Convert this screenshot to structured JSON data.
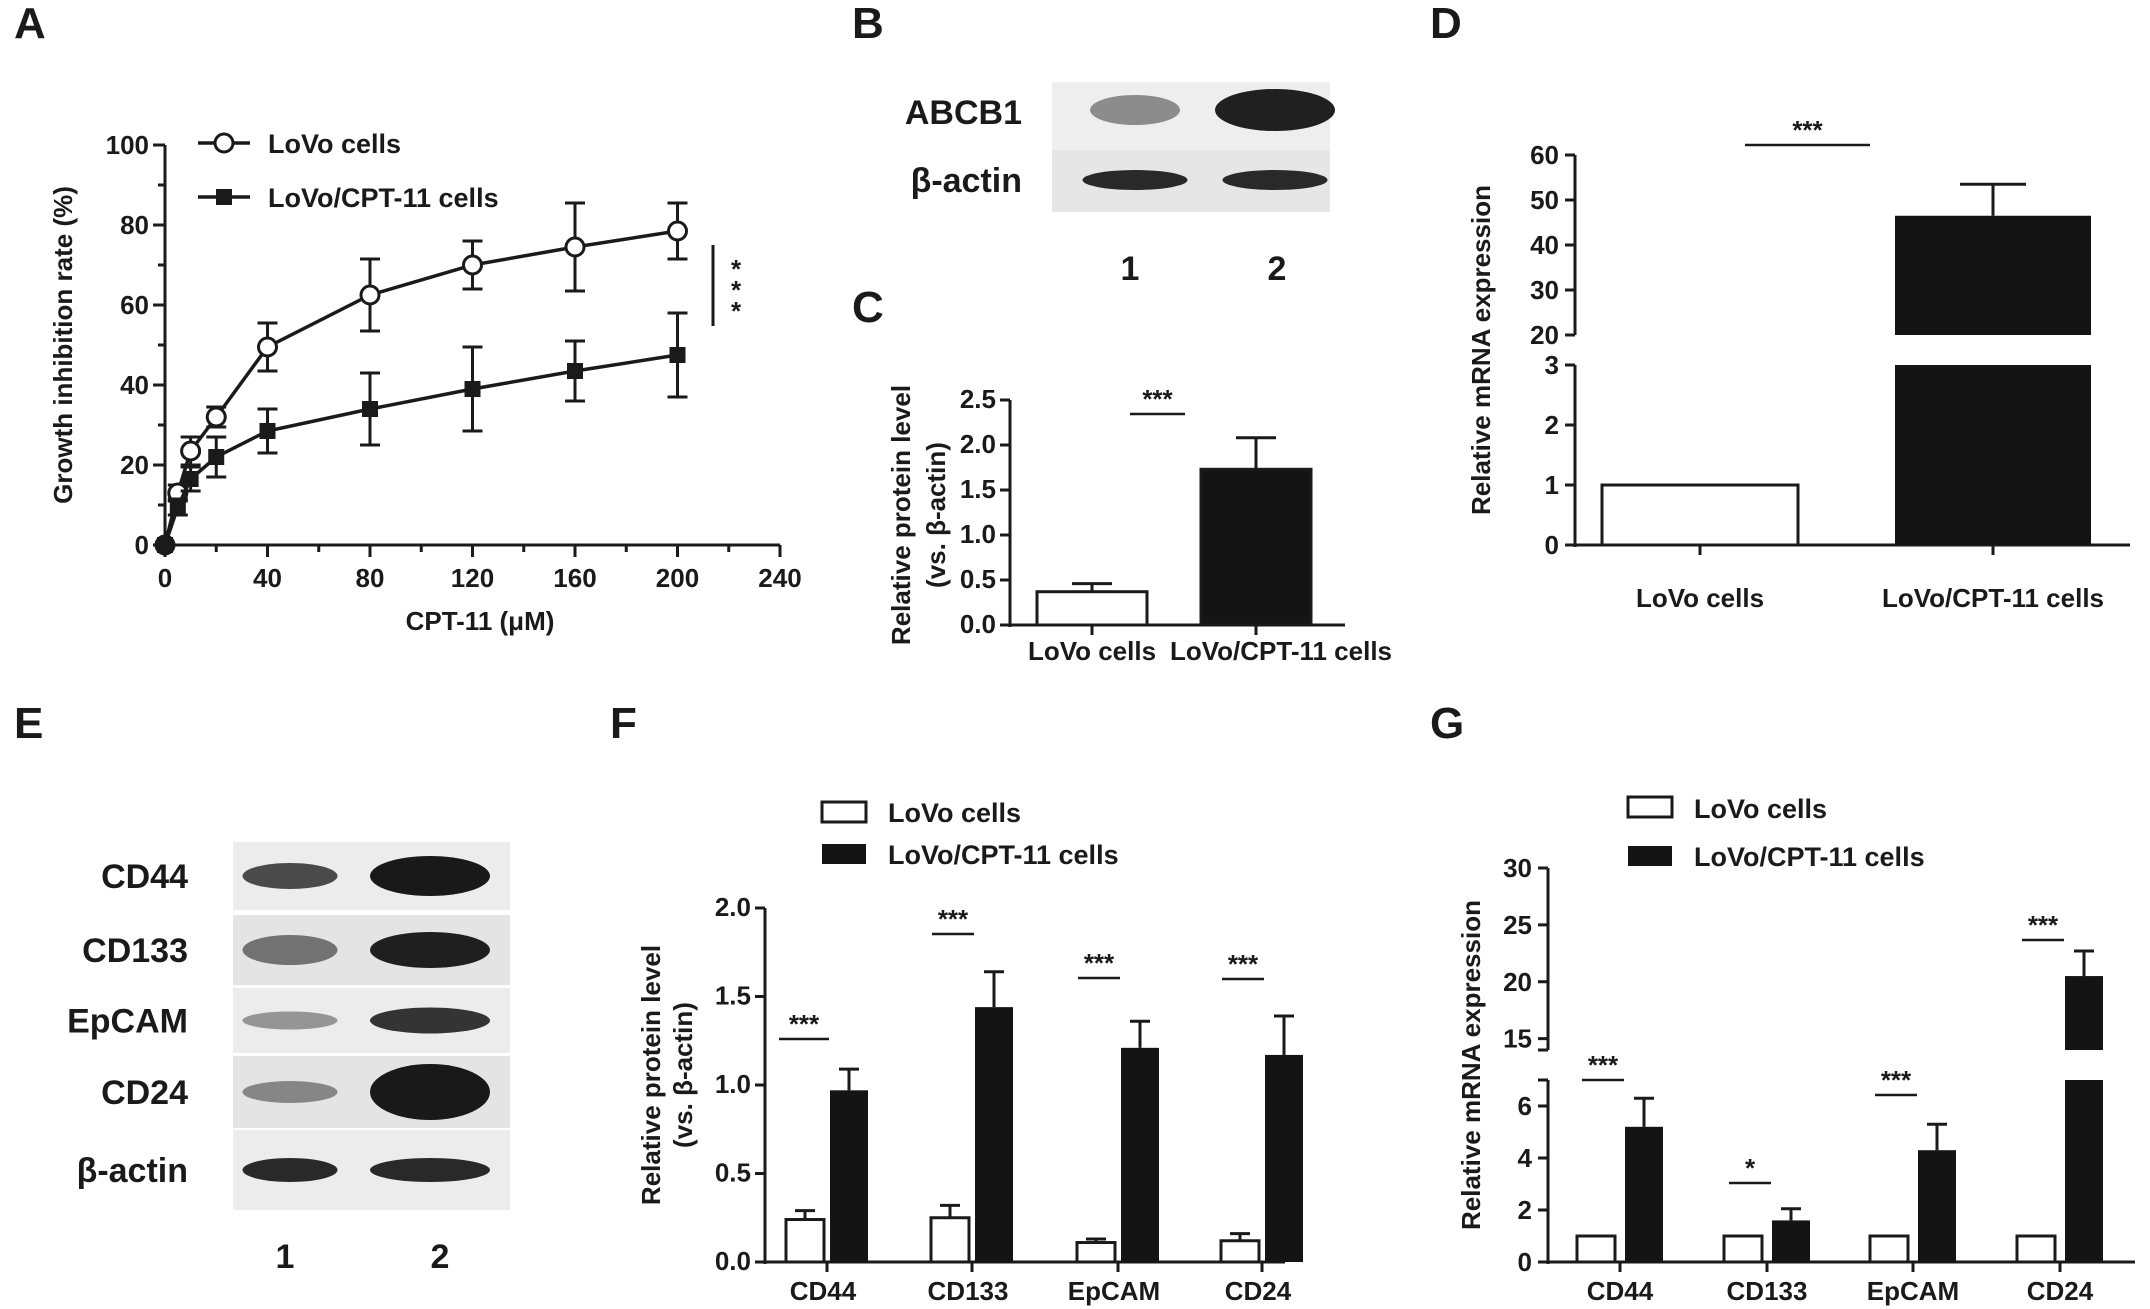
{
  "chart_data": [
    {
      "panel": "A",
      "type": "line",
      "xlabel": "CPT-11 (μM)",
      "ylabel": "Growth inhibition rate (%)",
      "xlim": [
        0,
        240
      ],
      "ylim": [
        0,
        100
      ],
      "xticks": [
        0,
        40,
        80,
        120,
        160,
        200,
        240
      ],
      "yticks": [
        0,
        20,
        40,
        60,
        80,
        100
      ],
      "legend_position": "top-left",
      "grid": false,
      "series": [
        {
          "name": "LoVo cells",
          "marker": "open-circle",
          "x": [
            0,
            5,
            10,
            20,
            40,
            80,
            120,
            160,
            200
          ],
          "y": [
            0,
            13,
            23.5,
            32,
            49.5,
            62.5,
            70,
            74.5,
            78.5
          ],
          "err": [
            0,
            2,
            3.5,
            2.5,
            6,
            9,
            6,
            11,
            7
          ]
        },
        {
          "name": "LoVo/CPT-11 cells",
          "marker": "filled-square",
          "x": [
            0,
            5,
            10,
            20,
            40,
            80,
            120,
            160,
            200
          ],
          "y": [
            0,
            9.5,
            16.5,
            22,
            28.5,
            34,
            39,
            43.5,
            47.5
          ],
          "err": [
            0,
            2,
            3,
            5,
            5.5,
            9,
            10.5,
            7.5,
            10.5
          ]
        }
      ],
      "significance": "***"
    },
    {
      "panel": "B",
      "type": "blot",
      "rows": [
        "ABCB1",
        "β-actin"
      ],
      "lanes": [
        "1",
        "2"
      ]
    },
    {
      "panel": "C",
      "type": "bar",
      "ylabel": "Relative protein level",
      "ylabel2": "(vs. β-actin)",
      "categories": [
        "LoVo cells",
        "LoVo/CPT-11 cells"
      ],
      "values": [
        0.37,
        1.73
      ],
      "errors": [
        0.09,
        0.35
      ],
      "ylim": [
        0,
        2.5
      ],
      "yticks": [
        "0.0",
        "0.5",
        "1.0",
        "1.5",
        "2.0",
        "2.5"
      ],
      "significance": "***"
    },
    {
      "panel": "D",
      "type": "bar",
      "ylabel": "Relative mRNA expression",
      "categories": [
        "LoVo cells",
        "LoVo/CPT-11 cells"
      ],
      "values": [
        1,
        46.5
      ],
      "errors": [
        0,
        7
      ],
      "broken_axis": {
        "lower": [
          0,
          3
        ],
        "upper": [
          20,
          60
        ]
      },
      "yticks_lower": [
        "0",
        "1",
        "2",
        "3"
      ],
      "yticks_upper": [
        "20",
        "30",
        "40",
        "50",
        "60"
      ],
      "significance": "***"
    },
    {
      "panel": "E",
      "type": "blot",
      "rows": [
        "CD44",
        "CD133",
        "EpCAM",
        "CD24",
        "β-actin"
      ],
      "lanes": [
        "1",
        "2"
      ]
    },
    {
      "panel": "F",
      "type": "bar",
      "ylabel": "Relative protein level",
      "ylabel2": "(vs. β-actin)",
      "categories": [
        "CD44",
        "CD133",
        "EpCAM",
        "CD24"
      ],
      "series": [
        {
          "name": "LoVo cells",
          "values": [
            0.24,
            0.25,
            0.11,
            0.12
          ],
          "errors": [
            0.05,
            0.07,
            0.02,
            0.04
          ]
        },
        {
          "name": "LoVo/CPT-11 cells",
          "values": [
            0.97,
            1.44,
            1.21,
            1.17
          ],
          "errors": [
            0.12,
            0.2,
            0.15,
            0.22
          ]
        }
      ],
      "ylim": [
        0,
        2.0
      ],
      "yticks": [
        "0.0",
        "0.5",
        "1.0",
        "1.5",
        "2.0"
      ],
      "significance": [
        "***",
        "***",
        "***",
        "***"
      ],
      "legend_position": "top-left"
    },
    {
      "panel": "G",
      "type": "bar",
      "ylabel": "Relative mRNA expression",
      "categories": [
        "CD44",
        "CD133",
        "EpCAM",
        "CD24"
      ],
      "series": [
        {
          "name": "LoVo cells",
          "values": [
            1,
            1,
            1,
            1
          ],
          "errors": [
            0,
            0,
            0,
            0
          ]
        },
        {
          "name": "LoVo/CPT-11 cells",
          "values": [
            5.2,
            1.6,
            4.3,
            20.5
          ],
          "errors": [
            1.1,
            0.45,
            1.0,
            2.2
          ]
        }
      ],
      "broken_axis": {
        "lower": [
          0,
          7
        ],
        "upper": [
          14,
          30
        ]
      },
      "yticks_lower": [
        "0",
        "2",
        "4",
        "6"
      ],
      "yticks_upper": [
        "15",
        "20",
        "25",
        "30"
      ],
      "significance": [
        "***",
        "*",
        "***",
        "***"
      ],
      "legend_position": "top-left"
    }
  ]
}
